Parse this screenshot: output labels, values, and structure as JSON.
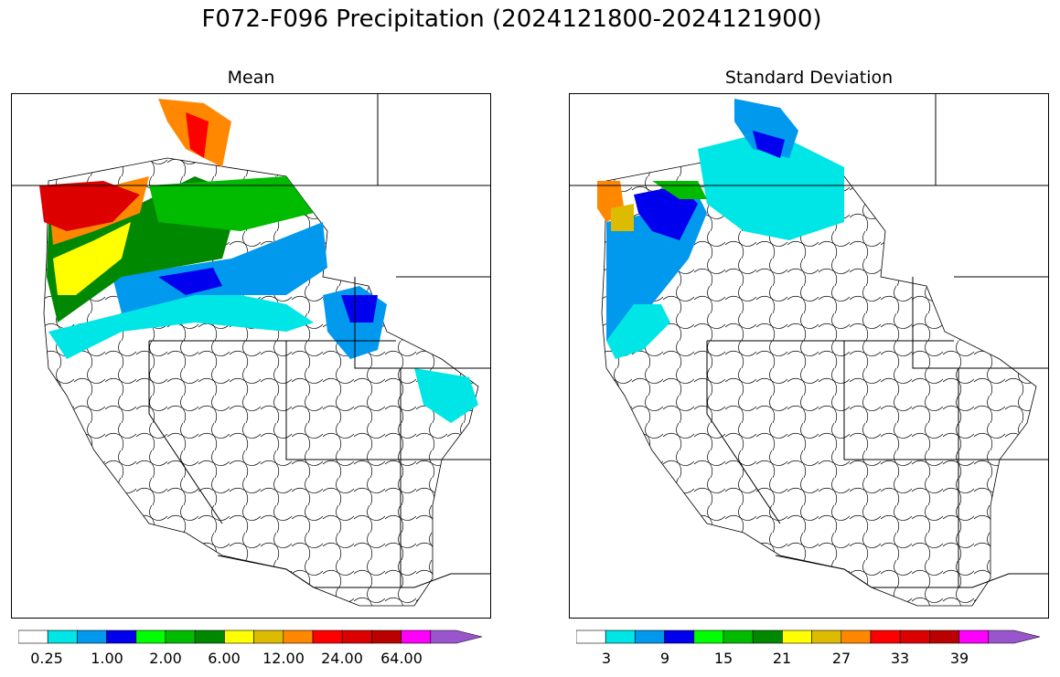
{
  "title": "F072-F096 Precipitation (2024121800-2024121900)",
  "panels": [
    {
      "title": "Mean"
    },
    {
      "title": "Standard Deviation"
    }
  ],
  "colorbar_colors": [
    "#ffffff",
    "#00e5e5",
    "#0099ee",
    "#0000ee",
    "#00ff00",
    "#00bb00",
    "#008800",
    "#ffff00",
    "#ddbb00",
    "#ff8800",
    "#ff0000",
    "#dd0000",
    "#bb0000",
    "#ff00ff",
    "#9955cc"
  ],
  "mean_tick_labels": [
    "0.25",
    "1.00",
    "2.00",
    "6.00",
    "12.00",
    "24.00",
    "64.00"
  ],
  "std_tick_labels": [
    "3",
    "9",
    "15",
    "21",
    "27",
    "33",
    "39"
  ]
}
